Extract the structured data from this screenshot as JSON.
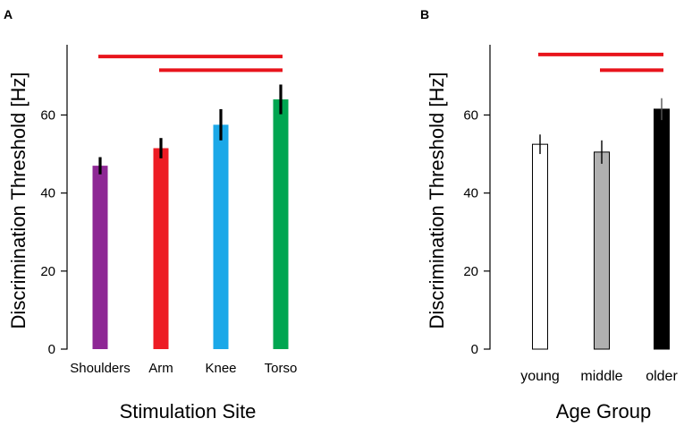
{
  "chart_data": [
    {
      "panel": "A",
      "type": "bar",
      "title": "",
      "xlabel": "Stimulation Site",
      "ylabel": "Discrimination Threshold [Hz]",
      "ylim": [
        0,
        78
      ],
      "yticks": [
        0,
        20,
        40,
        60
      ],
      "categories": [
        "Shoulders",
        "Arm",
        "Knee",
        "Torso"
      ],
      "values": [
        47,
        51.5,
        57.5,
        64
      ],
      "errors": [
        2.2,
        2.6,
        4.0,
        3.8
      ],
      "colors": [
        "#8e2795",
        "#ed1c24",
        "#1ba8e8",
        "#00a651"
      ],
      "significance": [
        {
          "from": 0,
          "to": 3,
          "y": 75
        },
        {
          "from": 1,
          "to": 3,
          "y": 71.5
        }
      ],
      "significance_color": "#e8141c"
    },
    {
      "panel": "B",
      "type": "bar",
      "title": "",
      "xlabel": "Age Group",
      "ylabel": "Discrimination Threshold [Hz]",
      "ylim": [
        0,
        78
      ],
      "yticks": [
        0,
        20,
        40,
        60
      ],
      "categories": [
        "young",
        "middle",
        "older"
      ],
      "values": [
        52.5,
        50.5,
        61.5
      ],
      "errors": [
        2.5,
        3.0,
        2.8
      ],
      "colors": [
        "#ffffff",
        "#b0b0b0",
        "#000000"
      ],
      "significance": [
        {
          "from": 0,
          "to": 2,
          "y": 75.5
        },
        {
          "from": 1,
          "to": 2,
          "y": 71.5
        }
      ],
      "significance_color": "#e8141c"
    }
  ]
}
